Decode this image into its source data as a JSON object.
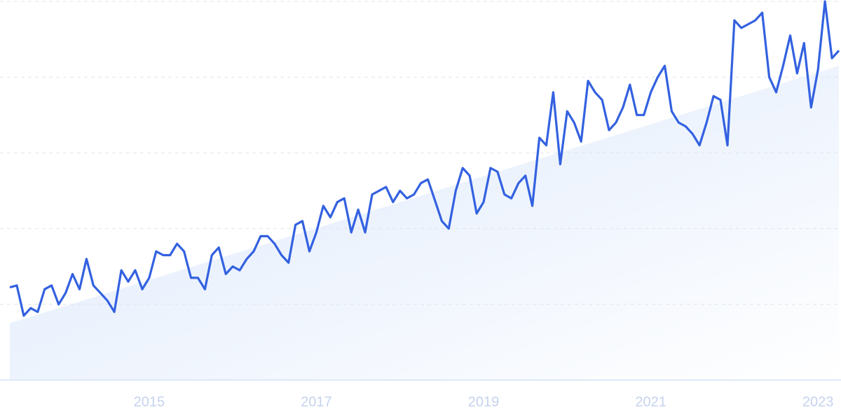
{
  "chart_data": {
    "type": "line",
    "x": [
      2013.333,
      2013.417,
      2013.5,
      2013.583,
      2013.667,
      2013.75,
      2013.833,
      2013.917,
      2014.0,
      2014.083,
      2014.167,
      2014.25,
      2014.333,
      2014.417,
      2014.5,
      2014.583,
      2014.667,
      2014.75,
      2014.833,
      2014.917,
      2015.0,
      2015.083,
      2015.167,
      2015.25,
      2015.333,
      2015.417,
      2015.5,
      2015.583,
      2015.667,
      2015.75,
      2015.833,
      2015.917,
      2016.0,
      2016.083,
      2016.167,
      2016.25,
      2016.333,
      2016.417,
      2016.5,
      2016.583,
      2016.667,
      2016.75,
      2016.833,
      2016.917,
      2017.0,
      2017.083,
      2017.167,
      2017.25,
      2017.333,
      2017.417,
      2017.5,
      2017.583,
      2017.667,
      2017.75,
      2017.833,
      2017.917,
      2018.0,
      2018.083,
      2018.167,
      2018.25,
      2018.333,
      2018.417,
      2018.5,
      2018.583,
      2018.667,
      2018.75,
      2018.833,
      2018.917,
      2019.0,
      2019.083,
      2019.167,
      2019.25,
      2019.333,
      2019.417,
      2019.5,
      2019.583,
      2019.667,
      2019.75,
      2019.833,
      2019.917,
      2020.0,
      2020.083,
      2020.167,
      2020.25,
      2020.333,
      2020.417,
      2020.5,
      2020.583,
      2020.667,
      2020.75,
      2020.833,
      2020.917,
      2021.0,
      2021.083,
      2021.167,
      2021.25,
      2021.333,
      2021.417,
      2021.5,
      2021.583,
      2021.667,
      2021.75,
      2021.833,
      2021.917,
      2022.0,
      2022.083,
      2022.167,
      2022.25,
      2022.333,
      2022.417,
      2022.5,
      2022.583,
      2022.667,
      2022.75,
      2022.833,
      2022.917,
      2023.0,
      2023.083,
      2023.167,
      2023.25
    ],
    "series": [
      {
        "color": "#3361e0",
        "values": [
          24.5,
          25,
          17,
          19,
          18,
          24,
          25,
          20,
          23,
          28,
          24,
          32,
          25,
          23,
          21,
          18,
          29,
          26,
          29,
          24,
          27,
          34,
          33,
          33,
          36,
          34,
          27,
          27,
          24,
          33,
          35,
          28,
          30,
          29,
          32,
          34,
          38,
          38,
          36,
          33,
          31,
          41,
          42,
          34,
          39,
          46,
          43,
          47,
          48,
          39,
          45,
          39,
          49,
          50,
          51,
          47,
          50,
          48,
          49,
          52,
          53,
          47.5,
          42,
          40,
          50,
          56,
          54,
          44,
          47,
          56,
          55,
          49,
          48,
          52,
          54,
          46,
          64,
          62,
          76,
          57,
          71,
          68,
          63,
          79,
          76,
          74,
          66,
          68,
          72,
          78,
          70,
          70,
          76,
          80,
          83,
          71,
          68,
          67,
          65,
          62,
          68,
          75,
          74,
          62,
          95,
          93,
          94,
          95,
          97,
          80,
          76,
          83,
          91,
          81,
          89,
          72,
          82,
          100,
          85,
          87
        ]
      }
    ],
    "trend": [
      15,
      83
    ],
    "xlim": [
      2013.333,
      2023.25
    ],
    "xticks": [
      2015,
      2017,
      2019,
      2021,
      2023
    ],
    "ylim": [
      0,
      100
    ],
    "yticks": [
      20,
      40,
      60,
      80,
      100
    ],
    "grid": true
  }
}
